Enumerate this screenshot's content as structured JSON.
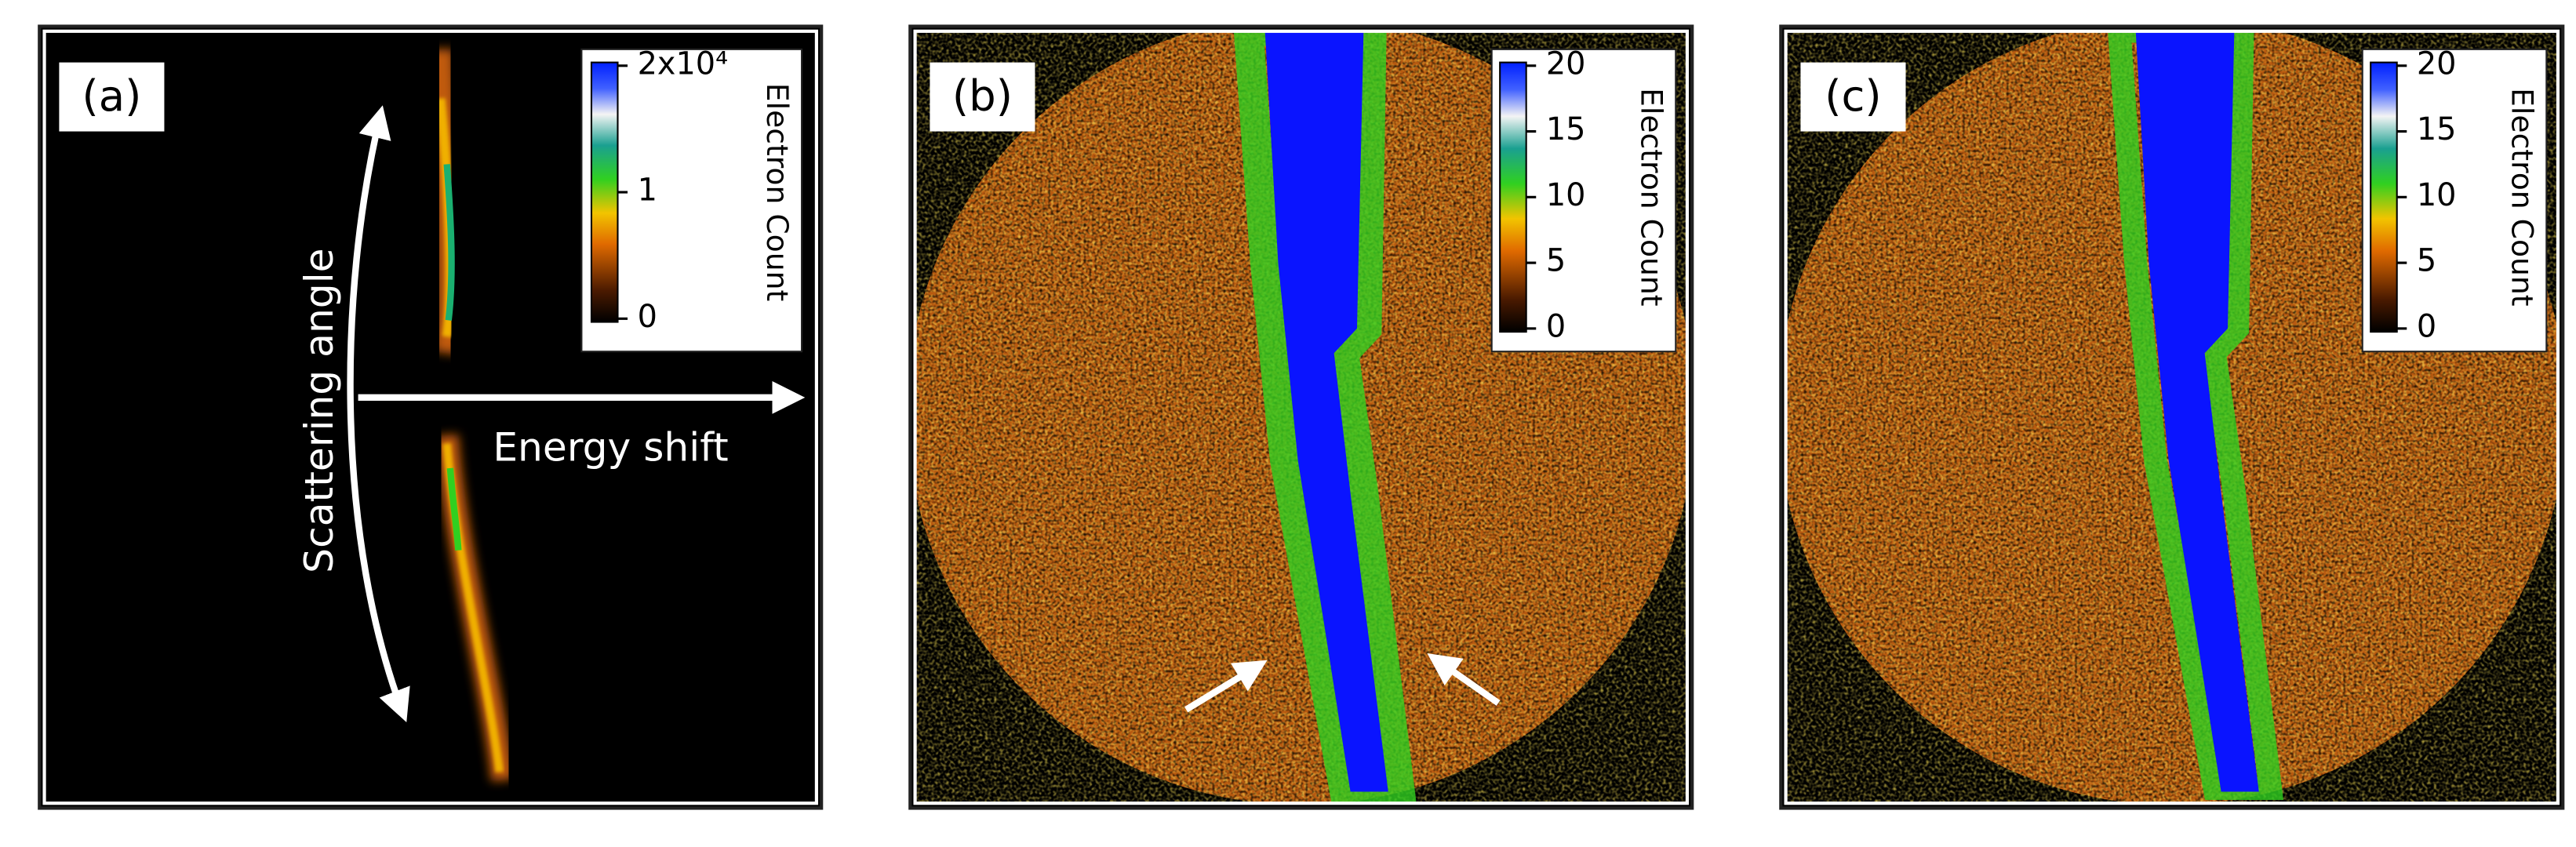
{
  "panels": [
    {
      "label": "(a)",
      "colorbar": {
        "title": "Electron Count",
        "ticks": [
          {
            "value": 20000,
            "label": "2x10⁴"
          },
          {
            "value": 10000,
            "label": "1"
          },
          0
        ]
      },
      "annotations": [
        "Scattering angle",
        "Energy shift"
      ]
    },
    {
      "label": "(b)",
      "colorbar": {
        "title": "Electron Count",
        "ticks": [
          20,
          15,
          10,
          5,
          0
        ]
      }
    },
    {
      "label": "(c)",
      "colorbar": {
        "title": "Electron Count",
        "ticks": [
          20,
          15,
          10,
          5,
          0
        ]
      }
    }
  ]
}
